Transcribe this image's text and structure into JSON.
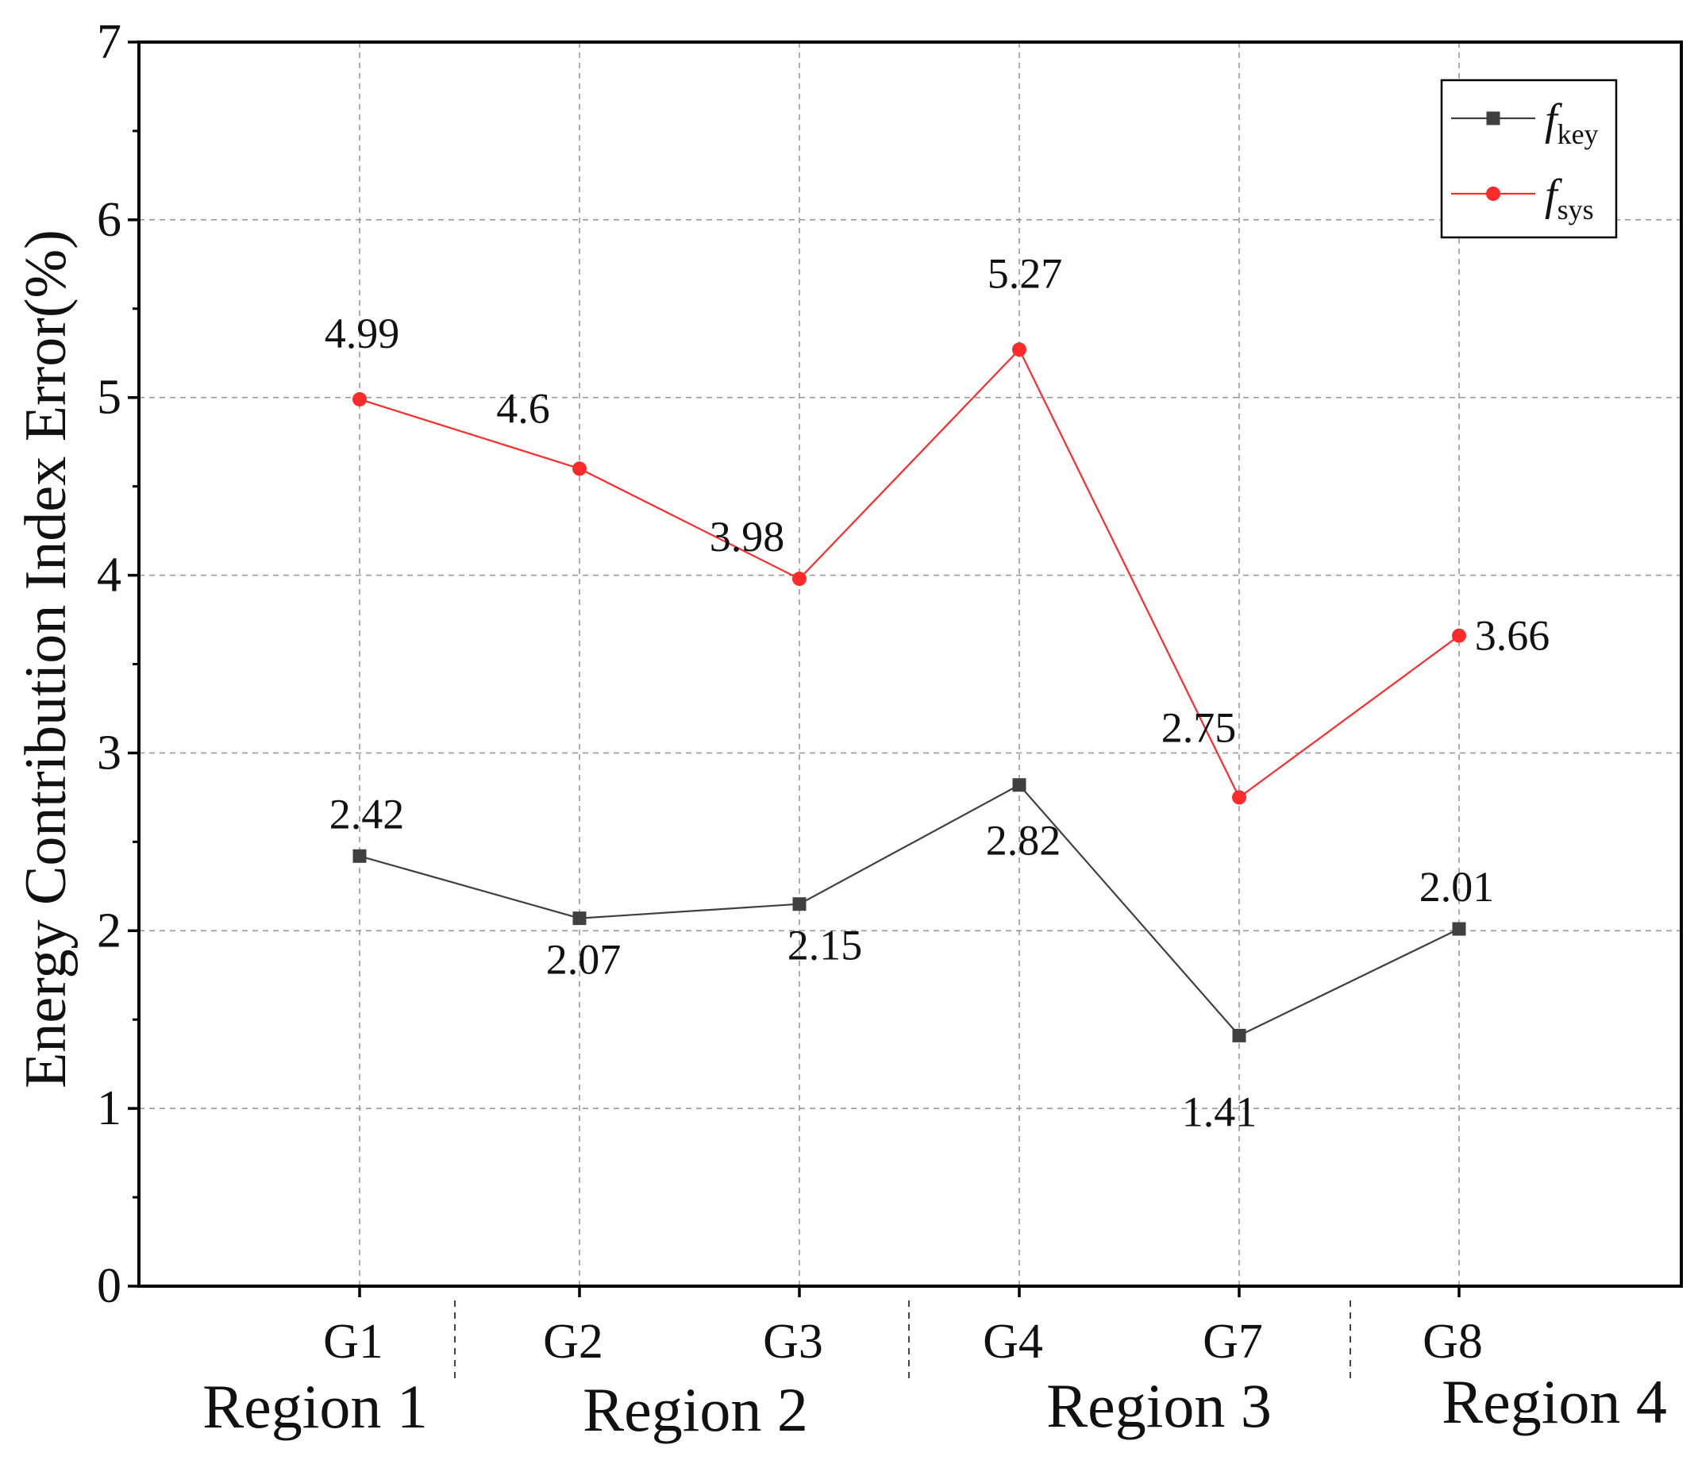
{
  "chart_data": {
    "type": "line",
    "title": "",
    "xlabel": "",
    "ylabel": "Energy Contribution Index Error(%)",
    "ylim": [
      0,
      7
    ],
    "yticks": [
      0,
      1,
      2,
      3,
      4,
      5,
      6,
      7
    ],
    "categories": [
      "G1",
      "G2",
      "G3",
      "G4",
      "G7",
      "G8"
    ],
    "grid": true,
    "legend_position": "top-right",
    "series": [
      {
        "name": "f",
        "subscript": "key",
        "color": "#404040",
        "marker": "square",
        "values": [
          2.42,
          2.07,
          2.15,
          2.82,
          1.41,
          2.01
        ],
        "labels": [
          "2.42",
          "2.07",
          "2.15",
          "2.82",
          "1.41",
          "2.01"
        ]
      },
      {
        "name": "f",
        "subscript": "sys",
        "color": "#ff2a2a",
        "marker": "circle",
        "values": [
          4.99,
          4.6,
          3.98,
          5.27,
          2.75,
          3.66
        ],
        "labels": [
          "4.99",
          "4.6",
          "3.98",
          "5.27",
          "2.75",
          "3.66"
        ]
      }
    ],
    "regions": [
      {
        "label": "Region 1"
      },
      {
        "label": "Region 2"
      },
      {
        "label": "Region 3"
      },
      {
        "label": "Region 4"
      }
    ]
  }
}
